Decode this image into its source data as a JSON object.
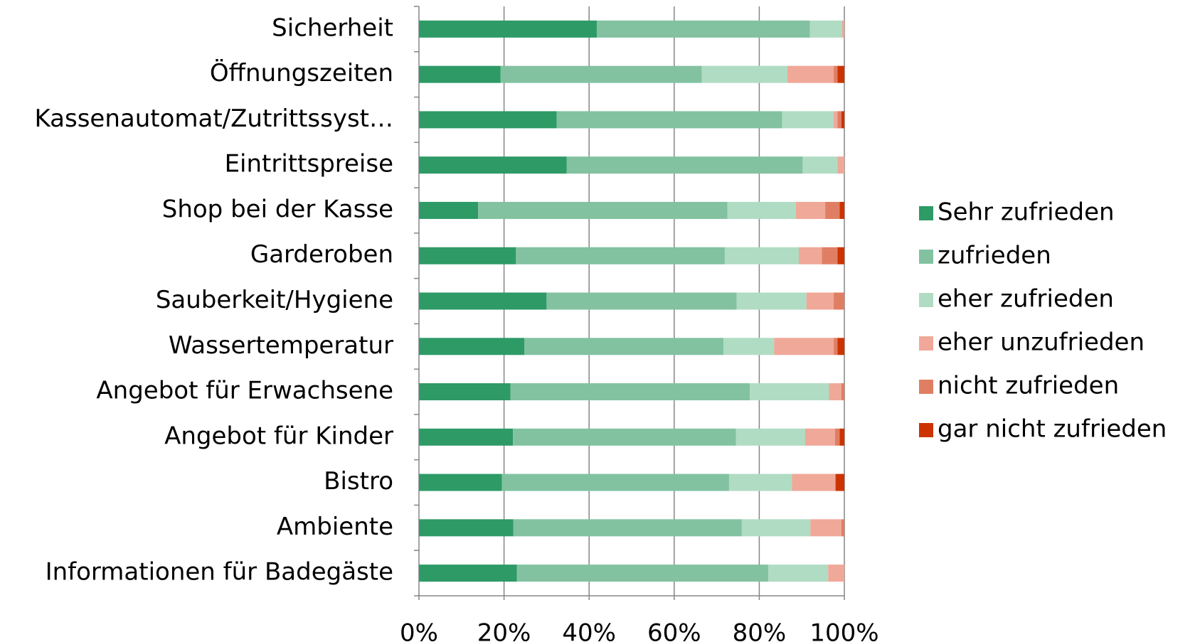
{
  "chart_data": {
    "type": "stacked_barh",
    "categories": [
      "Sicherheit",
      "Öffnungszeiten",
      "Kassenautomat/Zutrittssyst…",
      "Eintrittspreise",
      "Shop bei der Kasse",
      "Garderoben",
      "Sauberkeit/Hygiene",
      "Wassertemperatur",
      "Angebot für Erwachsene",
      "Angebot für Kinder",
      "Bistro",
      "Ambiente",
      "Informationen für Badegäste"
    ],
    "series": [
      {
        "name": "Sehr zufrieden",
        "color": "#2e9a66",
        "values": [
          41.8,
          19.2,
          32.4,
          34.7,
          13.9,
          22.8,
          30.0,
          24.8,
          21.5,
          22.1,
          19.5,
          22.2,
          23.0
        ]
      },
      {
        "name": "zufrieden",
        "color": "#82c2a1",
        "values": [
          50.1,
          47.3,
          53.0,
          55.5,
          58.6,
          49.1,
          44.7,
          46.8,
          56.3,
          52.4,
          53.4,
          53.7,
          59.1
        ]
      },
      {
        "name": "eher zufrieden",
        "color": "#b0dcc3",
        "values": [
          7.6,
          20.1,
          12.1,
          8.2,
          16.1,
          17.4,
          16.4,
          11.9,
          18.6,
          16.3,
          14.8,
          16.1,
          14.1
        ]
      },
      {
        "name": "eher unzufrieden",
        "color": "#f0a898",
        "values": [
          0.5,
          10.9,
          0.9,
          1.6,
          6.9,
          5.4,
          6.4,
          14.0,
          2.9,
          7.0,
          10.1,
          7.3,
          3.8
        ]
      },
      {
        "name": "nicht zufrieden",
        "color": "#e07e63",
        "values": [
          0,
          0.9,
          0.9,
          0,
          3.4,
          3.7,
          2.5,
          0.9,
          0.7,
          1.1,
          0.2,
          0.7,
          0
        ]
      },
      {
        "name": "gar nicht zufrieden",
        "color": "#cc3300",
        "values": [
          0,
          1.6,
          0.7,
          0,
          1.1,
          1.6,
          0,
          1.6,
          0,
          1.1,
          2.0,
          0,
          0
        ]
      }
    ],
    "xlim": [
      0,
      100
    ],
    "xticks": [
      {
        "value": 0,
        "label": "0%"
      },
      {
        "value": 20,
        "label": "20%"
      },
      {
        "value": 40,
        "label": "40%"
      },
      {
        "value": 60,
        "label": "60%"
      },
      {
        "value": 80,
        "label": "80%"
      },
      {
        "value": 100,
        "label": "100%"
      }
    ],
    "grid": true,
    "legend": "right"
  }
}
